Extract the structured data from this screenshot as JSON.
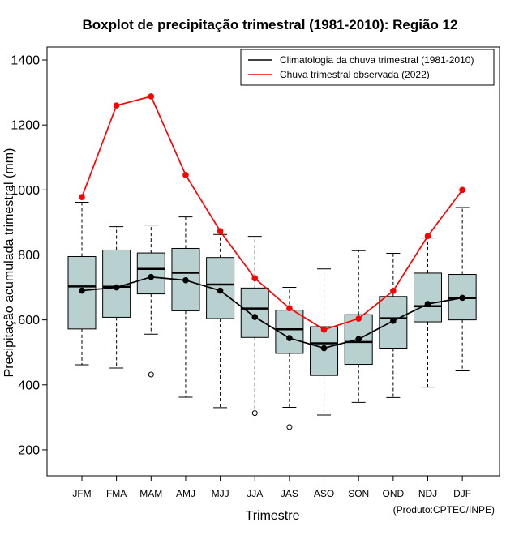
{
  "chart_data": {
    "type": "boxplot",
    "title": "Boxplot de precipitação trimestral (1981-2010): Região 12",
    "xlabel": "Trimestre",
    "ylabel": "Precipitação acumulada trimestral (mm)",
    "credit": "(Produto:CPTEC/INPE)",
    "ylim": [
      120,
      1440
    ],
    "yticks": [
      200,
      400,
      600,
      800,
      1000,
      1200,
      1400
    ],
    "ytick_labels": [
      "200",
      "400",
      "600",
      "800",
      "1000",
      "1200",
      "1400"
    ],
    "categories": [
      "JFM",
      "FMA",
      "MAM",
      "AMJ",
      "MJJ",
      "JJA",
      "JAS",
      "ASO",
      "SON",
      "OND",
      "NDJ",
      "DJF"
    ],
    "boxes": [
      {
        "whisker_low": 462,
        "q1": 572,
        "median": 703,
        "q3": 795,
        "whisker_high": 962,
        "outliers": []
      },
      {
        "whisker_low": 452,
        "q1": 608,
        "median": 702,
        "q3": 815,
        "whisker_high": 887,
        "outliers": []
      },
      {
        "whisker_low": 556,
        "q1": 680,
        "median": 757,
        "q3": 806,
        "whisker_high": 892,
        "outliers": [
          432
        ]
      },
      {
        "whisker_low": 362,
        "q1": 628,
        "median": 745,
        "q3": 820,
        "whisker_high": 917,
        "outliers": []
      },
      {
        "whisker_low": 330,
        "q1": 604,
        "median": 709,
        "q3": 792,
        "whisker_high": 863,
        "outliers": []
      },
      {
        "whisker_low": 326,
        "q1": 546,
        "median": 635,
        "q3": 698,
        "whisker_high": 857,
        "outliers": [
          313
        ]
      },
      {
        "whisker_low": 331,
        "q1": 497,
        "median": 571,
        "q3": 630,
        "whisker_high": 700,
        "outliers": [
          270
        ]
      },
      {
        "whisker_low": 307,
        "q1": 429,
        "median": 528,
        "q3": 579,
        "whisker_high": 757,
        "outliers": []
      },
      {
        "whisker_low": 346,
        "q1": 463,
        "median": 532,
        "q3": 616,
        "whisker_high": 813,
        "outliers": []
      },
      {
        "whisker_low": 361,
        "q1": 513,
        "median": 605,
        "q3": 672,
        "whisker_high": 805,
        "outliers": []
      },
      {
        "whisker_low": 393,
        "q1": 594,
        "median": 642,
        "q3": 744,
        "whisker_high": 852,
        "outliers": []
      },
      {
        "whisker_low": 443,
        "q1": 600,
        "median": 667,
        "q3": 740,
        "whisker_high": 946,
        "outliers": []
      }
    ],
    "series": [
      {
        "name": "Climatologia da chuva trimestral (1981-2010)",
        "color": "#000000",
        "values": [
          690,
          700,
          732,
          722,
          690,
          609,
          544,
          513,
          541,
          597,
          649,
          668
        ]
      },
      {
        "name": "Chuva trimestral observada (2022)",
        "color": "#ff0000",
        "values": [
          978,
          1260,
          1288,
          1046,
          873,
          728,
          636,
          570,
          604,
          689,
          858,
          1000
        ]
      }
    ],
    "legend_position": "top-right",
    "box_color": "#b9d0d0",
    "grid": false
  }
}
